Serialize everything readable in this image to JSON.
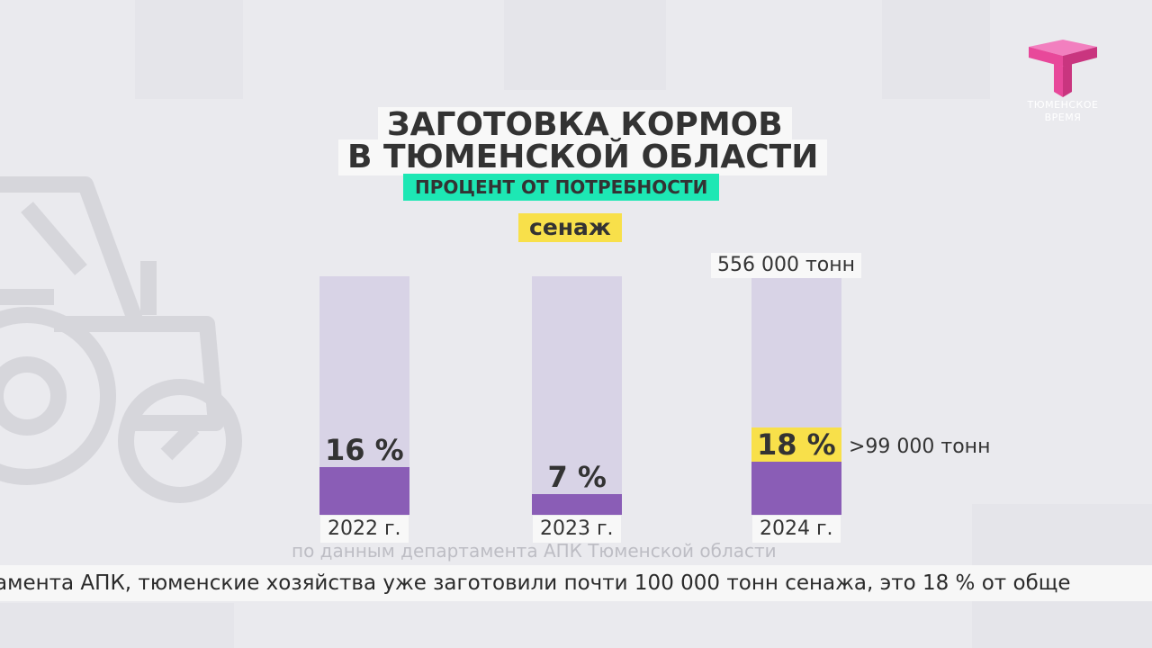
{
  "header": {
    "title_line1": "ЗАГОТОВКА КОРМОВ",
    "title_line2": "В ТЮМЕНСКОЙ ОБЛАСТИ",
    "subtitle": "ПРОЦЕНТ ОТ ПОТРЕБНОСТИ",
    "category": "сенаж"
  },
  "chart_data": {
    "type": "bar",
    "title": "ЗАГОТОВКА КОРМОВ В ТЮМЕНСКОЙ ОБЛАСТИ",
    "subtitle": "ПРОЦЕНТ ОТ ПОТРЕБНОСТИ",
    "categories": [
      "2022 г.",
      "2023 г.",
      "2024 г."
    ],
    "values": [
      16,
      7,
      18
    ],
    "value_labels": [
      "16 %",
      "7 %",
      "18 %"
    ],
    "highlight_index": 2,
    "ylim": [
      0,
      100
    ],
    "annotations": {
      "total": "556 000 тонн",
      "harvested": ">99 000 тонн"
    },
    "colors": {
      "fill": "#8a5db6",
      "track": "#d8d3e6",
      "highlight": "#f8e04a"
    }
  },
  "source": "по данным департамента АПК Тюменской области",
  "ticker": {
    "text": "амента АПК, тюменские хозяйства уже заготовили почти 100 000 тонн сенажа, это 18 % от обще"
  },
  "logo": {
    "line1": "ТЮМЕНСКОЕ",
    "line2": "ВРЕМЯ",
    "icon": "t-cube-logo-icon"
  },
  "colors": {
    "background": "#eaeaee",
    "accent_teal": "#1de7b4",
    "accent_yellow": "#f8e04a",
    "accent_magenta": "#e8489a"
  }
}
